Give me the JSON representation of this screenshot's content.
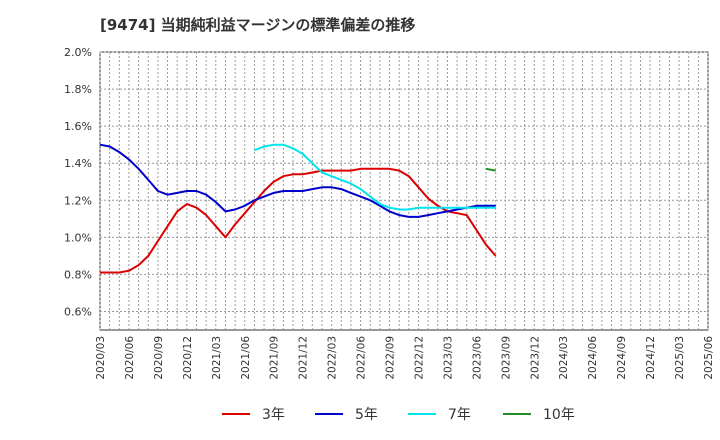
{
  "chart_data": {
    "type": "line",
    "title": "[9474]  当期純利益マージンの標準偏差の推移",
    "xlabel": "",
    "ylabel": "",
    "ylim": [
      0.5,
      2.0
    ],
    "y_ticks": [
      "0.6%",
      "0.8%",
      "1.0%",
      "1.2%",
      "1.4%",
      "1.6%",
      "1.8%",
      "2.0%"
    ],
    "y_tick_values": [
      0.6,
      0.8,
      1.0,
      1.2,
      1.4,
      1.6,
      1.8,
      2.0
    ],
    "x_ticks": [
      "2020/03",
      "2020/06",
      "2020/09",
      "2020/12",
      "2021/03",
      "2021/06",
      "2021/09",
      "2021/12",
      "2022/03",
      "2022/06",
      "2022/09",
      "2022/12",
      "2023/03",
      "2023/06",
      "2023/09",
      "2023/12",
      "2024/03",
      "2024/06",
      "2024/09",
      "2024/12",
      "2025/03",
      "2025/06"
    ],
    "grid": true,
    "legend_position": "bottom",
    "series": [
      {
        "name": "3年",
        "color": "#dd0000",
        "start_index": 0,
        "values": [
          0.81,
          0.81,
          0.81,
          0.82,
          0.85,
          0.9,
          0.98,
          1.06,
          1.14,
          1.18,
          1.16,
          1.12,
          1.06,
          1.0,
          1.07,
          1.13,
          1.19,
          1.25,
          1.3,
          1.33,
          1.34,
          1.34,
          1.35,
          1.36,
          1.36,
          1.36,
          1.36,
          1.37,
          1.37,
          1.37,
          1.37,
          1.36,
          1.33,
          1.27,
          1.21,
          1.17,
          1.14,
          1.13,
          1.12,
          1.04,
          0.96,
          0.9
        ]
      },
      {
        "name": "5年",
        "color": "#0000cc",
        "start_index": 0,
        "values": [
          1.5,
          1.49,
          1.46,
          1.42,
          1.37,
          1.31,
          1.25,
          1.23,
          1.24,
          1.25,
          1.25,
          1.23,
          1.19,
          1.14,
          1.15,
          1.17,
          1.2,
          1.22,
          1.24,
          1.25,
          1.25,
          1.25,
          1.26,
          1.27,
          1.27,
          1.26,
          1.24,
          1.22,
          1.2,
          1.17,
          1.14,
          1.12,
          1.11,
          1.11,
          1.12,
          1.13,
          1.14,
          1.15,
          1.16,
          1.17,
          1.17,
          1.17
        ]
      },
      {
        "name": "7年",
        "color": "#00e5ee",
        "start_index": 16,
        "values": [
          1.47,
          1.49,
          1.5,
          1.5,
          1.48,
          1.45,
          1.4,
          1.35,
          1.33,
          1.31,
          1.29,
          1.26,
          1.22,
          1.18,
          1.16,
          1.15,
          1.15,
          1.16,
          1.16,
          1.16,
          1.16,
          1.16,
          1.16,
          1.16,
          1.16,
          1.16
        ]
      },
      {
        "name": "10年",
        "color": "#228b22",
        "start_index": 40,
        "values": [
          1.37,
          1.36
        ]
      }
    ]
  }
}
